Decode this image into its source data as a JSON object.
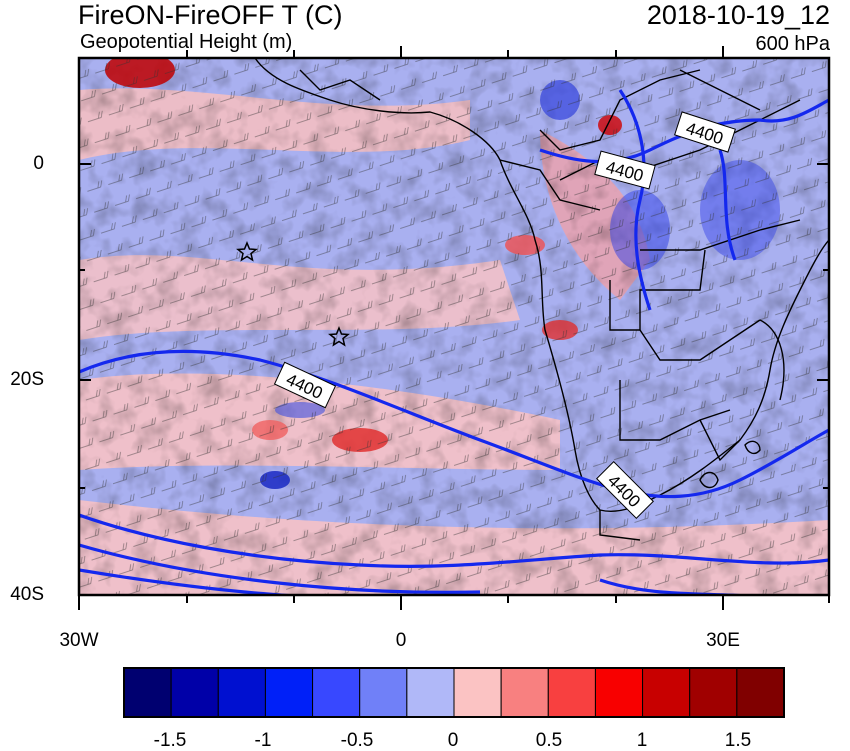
{
  "header": {
    "title": "FireON-FireOFF T (C)",
    "subtitle": "Geopotential Height (m)",
    "datetime": "2018-10-19_12",
    "level": "600 hPa"
  },
  "map": {
    "lat_labels": [
      "0",
      "20S",
      "40S"
    ],
    "lon_labels": [
      "30W",
      "0",
      "30E"
    ],
    "contour_value": "4400",
    "contour_labels": [
      "4400",
      "4400",
      "4400",
      "4400"
    ],
    "markers": [
      "star",
      "star"
    ],
    "colors": {
      "contour": "#1428ee",
      "coastline": "#000000",
      "wind_barb": "#000000",
      "background_positive": "#fbc3c3",
      "background_negative": "#a9b0f0"
    }
  },
  "colorbar": {
    "colors": [
      "#000070",
      "#0000a8",
      "#0010d0",
      "#0020f8",
      "#3848ff",
      "#7080f8",
      "#b0b8f8",
      "#fbc3c3",
      "#f88080",
      "#f84040",
      "#f80000",
      "#c80000",
      "#a00000",
      "#800000"
    ],
    "tick_labels": [
      "-1.5",
      "-1",
      "-0.5",
      "0",
      "0.5",
      "1",
      "1.5"
    ]
  }
}
